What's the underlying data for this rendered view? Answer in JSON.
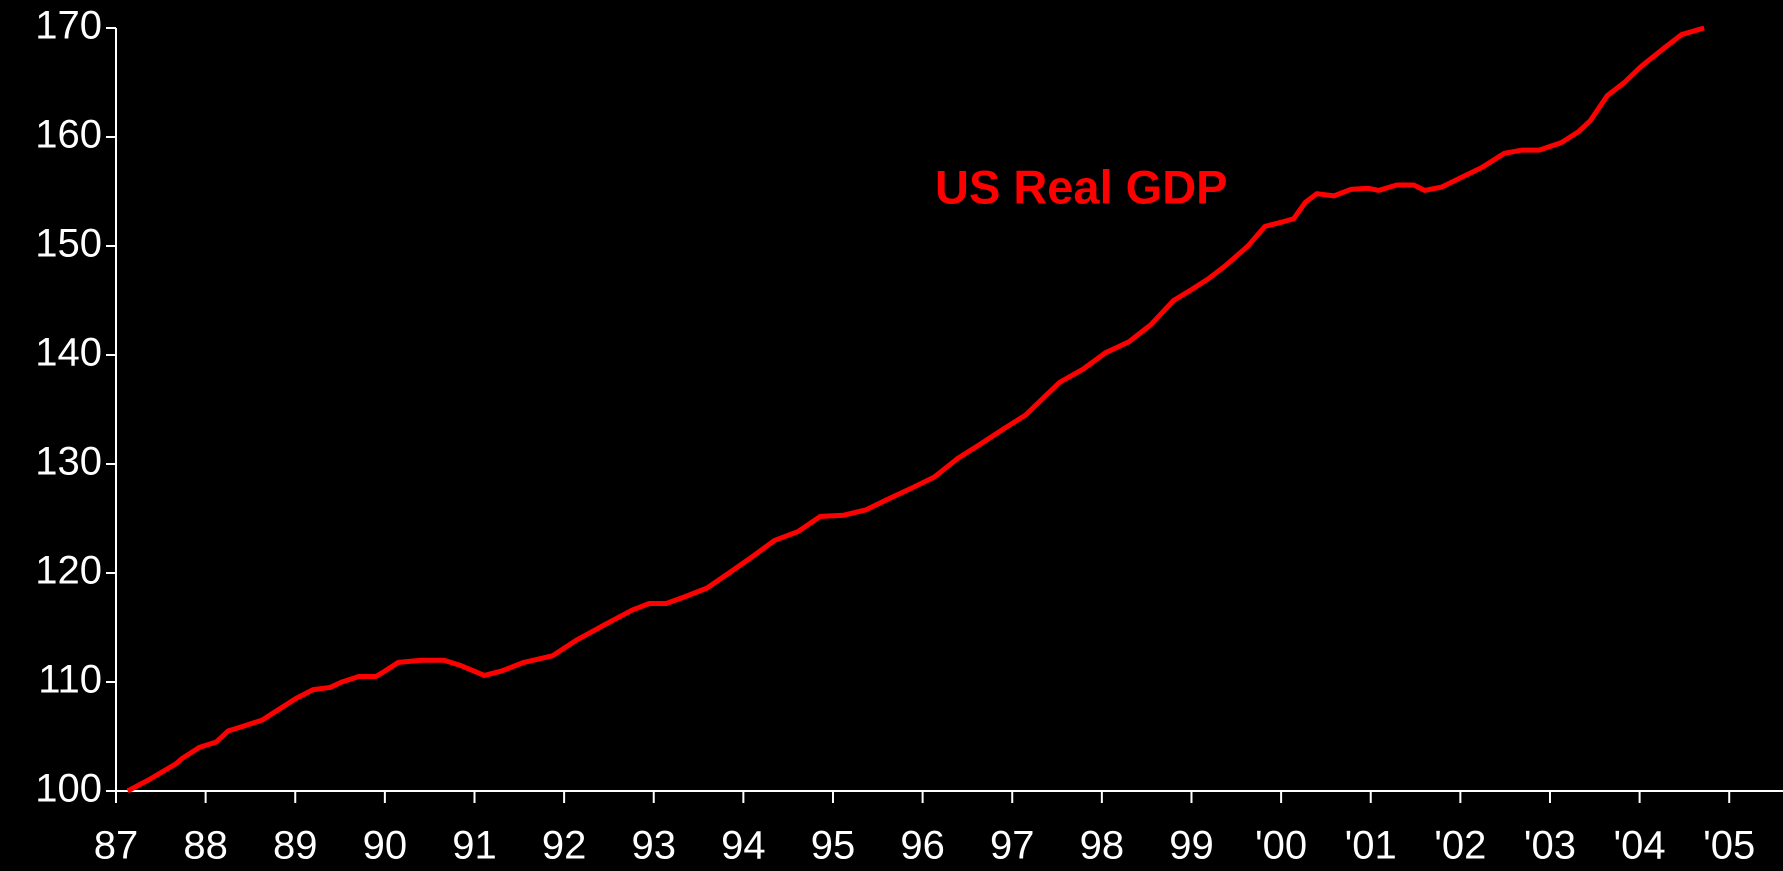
{
  "chart_data": {
    "type": "line",
    "annotation": "US Real GDP",
    "series": [
      {
        "name": "US Real GDP",
        "color": "#ff0000",
        "x": [
          1987.13,
          1987.36,
          1987.67,
          1987.74,
          1987.93,
          1988.12,
          1988.25,
          1988.44,
          1988.63,
          1988.82,
          1989.01,
          1989.2,
          1989.39,
          1989.52,
          1989.71,
          1989.9,
          1990.0,
          1990.15,
          1990.41,
          1990.66,
          1990.85,
          1991.11,
          1991.3,
          1991.55,
          1991.87,
          1992.13,
          1992.44,
          1992.76,
          1992.95,
          1993.14,
          1993.34,
          1993.59,
          1993.84,
          1994.1,
          1994.35,
          1994.61,
          1994.86,
          1995.12,
          1995.37,
          1995.62,
          1995.88,
          1996.13,
          1996.39,
          1996.64,
          1996.9,
          1997.15,
          1997.34,
          1997.53,
          1997.79,
          1998.04,
          1998.3,
          1998.55,
          1998.8,
          1999.0,
          1999.19,
          1999.38,
          1999.63,
          1999.82,
          2000.01,
          2000.14,
          2000.27,
          2000.4,
          2000.59,
          2000.78,
          2000.97,
          2001.09,
          2001.29,
          2001.48,
          2001.6,
          2001.79,
          2001.99,
          2002.24,
          2002.49,
          2002.69,
          2002.88,
          2003.13,
          2003.32,
          2003.45,
          2003.64,
          2003.83,
          2004.02,
          2004.28,
          2004.47,
          2004.72
        ],
        "values": [
          100,
          101,
          102.5,
          103,
          104,
          104.5,
          105.5,
          106,
          106.5,
          107.5,
          108.5,
          109.3,
          109.5,
          110,
          110.5,
          110.5,
          111,
          111.8,
          112,
          112,
          111.5,
          110.6,
          111,
          111.8,
          112.4,
          113.8,
          115.2,
          116.6,
          117.2,
          117.2,
          117.8,
          118.6,
          120,
          121.5,
          123,
          123.8,
          125.2,
          125.3,
          125.8,
          126.8,
          127.8,
          128.8,
          130.5,
          131.8,
          133.2,
          134.5,
          136,
          137.5,
          138.7,
          140.2,
          141.2,
          142.8,
          145,
          146,
          147,
          148.2,
          150,
          151.8,
          152.2,
          152.5,
          154,
          154.8,
          154.6,
          155.2,
          155.3,
          155.1,
          155.6,
          155.6,
          155.1,
          155.4,
          156.2,
          157.2,
          158.5,
          158.8,
          158.8,
          159.5,
          160.5,
          161.5,
          163.8,
          165,
          166.5,
          168.2,
          169.4,
          170
        ]
      }
    ],
    "xlim": [
      1987,
      2005.6
    ],
    "xticks": [
      {
        "value": 1987,
        "label": "87"
      },
      {
        "value": 1988,
        "label": "88"
      },
      {
        "value": 1989,
        "label": "89"
      },
      {
        "value": 1990,
        "label": "90"
      },
      {
        "value": 1991,
        "label": "91"
      },
      {
        "value": 1992,
        "label": "92"
      },
      {
        "value": 1993,
        "label": "93"
      },
      {
        "value": 1994,
        "label": "94"
      },
      {
        "value": 1995,
        "label": "95"
      },
      {
        "value": 1996,
        "label": "96"
      },
      {
        "value": 1997,
        "label": "97"
      },
      {
        "value": 1998,
        "label": "98"
      },
      {
        "value": 1999,
        "label": "99"
      },
      {
        "value": 2000,
        "label": "'00"
      },
      {
        "value": 2001,
        "label": "'01"
      },
      {
        "value": 2002,
        "label": "'02"
      },
      {
        "value": 2003,
        "label": "'03"
      },
      {
        "value": 2004,
        "label": "'04"
      },
      {
        "value": 2005,
        "label": "'05"
      }
    ],
    "ylim": [
      100,
      170
    ],
    "yticks": [
      100,
      110,
      120,
      130,
      140,
      150,
      160,
      170
    ],
    "grid": false
  }
}
